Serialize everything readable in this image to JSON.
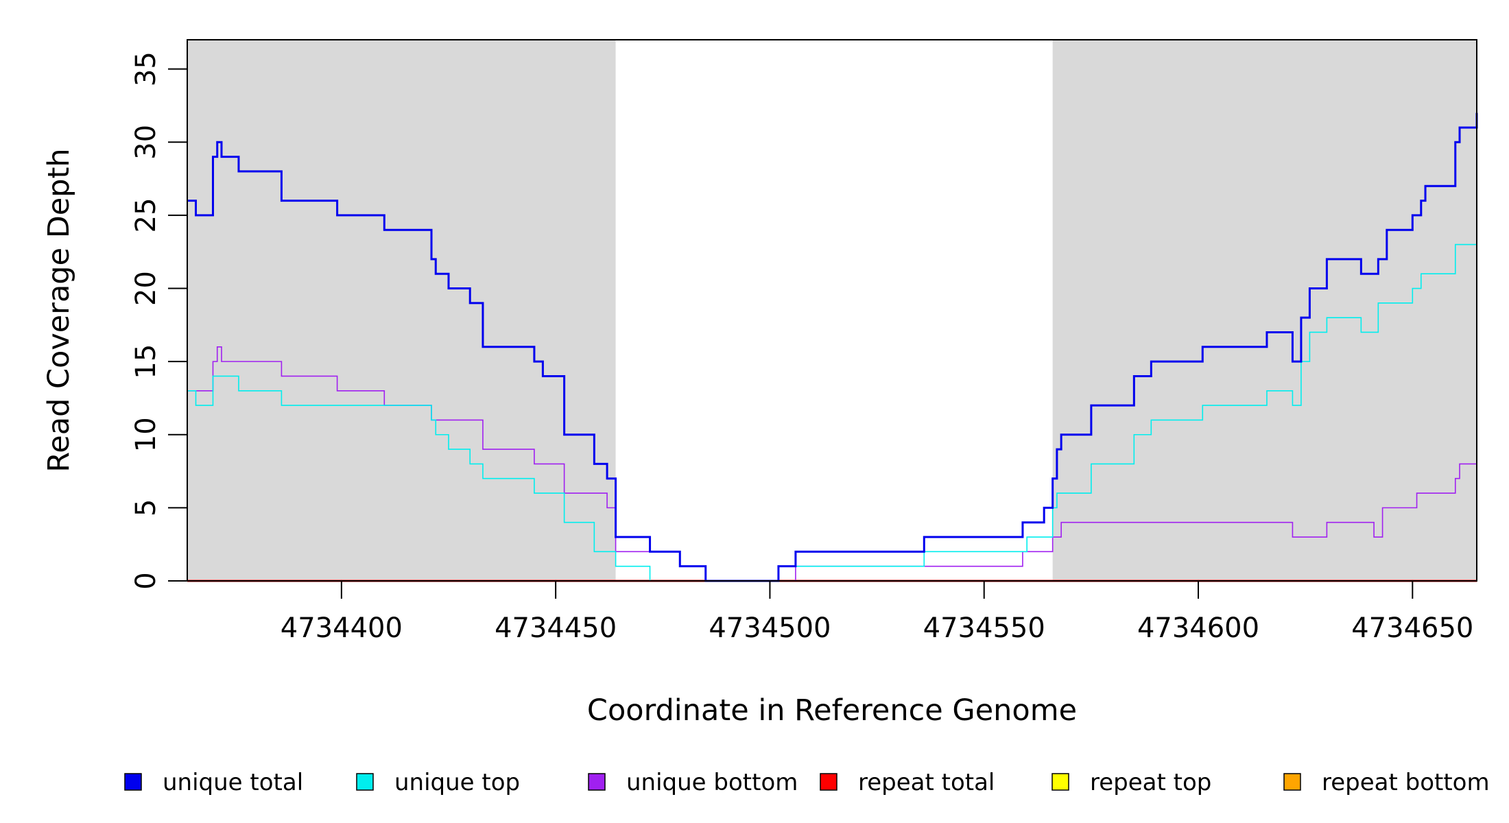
{
  "chart_data": {
    "type": "line",
    "title": "",
    "xlabel": "Coordinate in Reference Genome",
    "ylabel": "Read Coverage Depth",
    "xlim": [
      4734364,
      4734665
    ],
    "ylim": [
      0,
      37
    ],
    "x_ticks": [
      4734400,
      4734450,
      4734500,
      4734550,
      4734600,
      4734650
    ],
    "x_tick_labels": [
      "4734400",
      "4734450",
      "4734500",
      "4734550",
      "4734600",
      "4734650"
    ],
    "y_ticks": [
      0,
      5,
      10,
      15,
      20,
      25,
      30,
      35
    ],
    "y_tick_labels": [
      "0",
      "5",
      "10",
      "15",
      "20",
      "25",
      "30",
      "35"
    ],
    "shaded_regions": [
      [
        4734364,
        4734464
      ],
      [
        4734566,
        4734665
      ]
    ],
    "shade_color": "#d9d9d9",
    "series": [
      {
        "name": "unique total",
        "color": "#0000ee",
        "x": [
          4734364,
          4734366,
          4734370,
          4734371,
          4734372,
          4734376,
          4734386,
          4734399,
          4734410,
          4734421,
          4734422,
          4734425,
          4734430,
          4734433,
          4734445,
          4734447,
          4734452,
          4734459,
          4734462,
          4734464,
          4734472,
          4734479,
          4734485,
          4734502,
          4734506,
          4734536,
          4734559,
          4734564,
          4734566,
          4734567,
          4734568,
          4734575,
          4734585,
          4734589,
          4734601,
          4734616,
          4734622,
          4734624,
          4734626,
          4734630,
          4734638,
          4734642,
          4734644,
          4734650,
          4734652,
          4734653,
          4734660,
          4734661,
          4734665
        ],
        "values": [
          26,
          25,
          29,
          30,
          29,
          28,
          26,
          25,
          24,
          22,
          21,
          20,
          19,
          16,
          15,
          14,
          10,
          8,
          7,
          3,
          2,
          1,
          0,
          1,
          2,
          3,
          4,
          5,
          7,
          9,
          10,
          12,
          14,
          15,
          16,
          17,
          15,
          18,
          20,
          22,
          21,
          22,
          24,
          25,
          26,
          27,
          30,
          31,
          32
        ]
      },
      {
        "name": "unique top",
        "color": "#00eeee",
        "x": [
          4734364,
          4734366,
          4734370,
          4734376,
          4734386,
          4734410,
          4734421,
          4734422,
          4734425,
          4734430,
          4734433,
          4734445,
          4734452,
          4734459,
          4734464,
          4734472,
          4734485,
          4734502,
          4734536,
          4734560,
          4734566,
          4734567,
          4734575,
          4734585,
          4734589,
          4734601,
          4734616,
          4734622,
          4734624,
          4734626,
          4734630,
          4734638,
          4734642,
          4734650,
          4734652,
          4734660,
          4734665
        ],
        "values": [
          13,
          12,
          14,
          13,
          12,
          12,
          11,
          10,
          9,
          8,
          7,
          6,
          4,
          2,
          1,
          0,
          0,
          1,
          2,
          3,
          5,
          6,
          8,
          10,
          11,
          12,
          13,
          12,
          15,
          17,
          18,
          17,
          19,
          20,
          21,
          23,
          24
        ]
      },
      {
        "name": "unique bottom",
        "color": "#a020f0",
        "x": [
          4734364,
          4734370,
          4734371,
          4734372,
          4734386,
          4734399,
          4734410,
          4734421,
          4734433,
          4734445,
          4734452,
          4734462,
          4734464,
          4734472,
          4734479,
          4734485,
          4734506,
          4734559,
          4734566,
          4734568,
          4734622,
          4734630,
          4734641,
          4734643,
          4734651,
          4734660,
          4734661,
          4734665
        ],
        "values": [
          13,
          15,
          16,
          15,
          14,
          13,
          12,
          11,
          9,
          8,
          6,
          5,
          2,
          2,
          1,
          0,
          1,
          2,
          3,
          4,
          3,
          4,
          3,
          5,
          6,
          7,
          8,
          8
        ]
      },
      {
        "name": "repeat total",
        "color": "#ff0000",
        "x": [
          4734364,
          4734665
        ],
        "values": [
          0,
          0
        ]
      },
      {
        "name": "repeat top",
        "color": "#ffff00",
        "x": [
          4734364,
          4734665
        ],
        "values": [
          0,
          0
        ]
      },
      {
        "name": "repeat bottom",
        "color": "#ffa500",
        "x": [
          4734364,
          4734665
        ],
        "values": [
          0,
          0
        ]
      }
    ],
    "legend_position": "bottom"
  }
}
